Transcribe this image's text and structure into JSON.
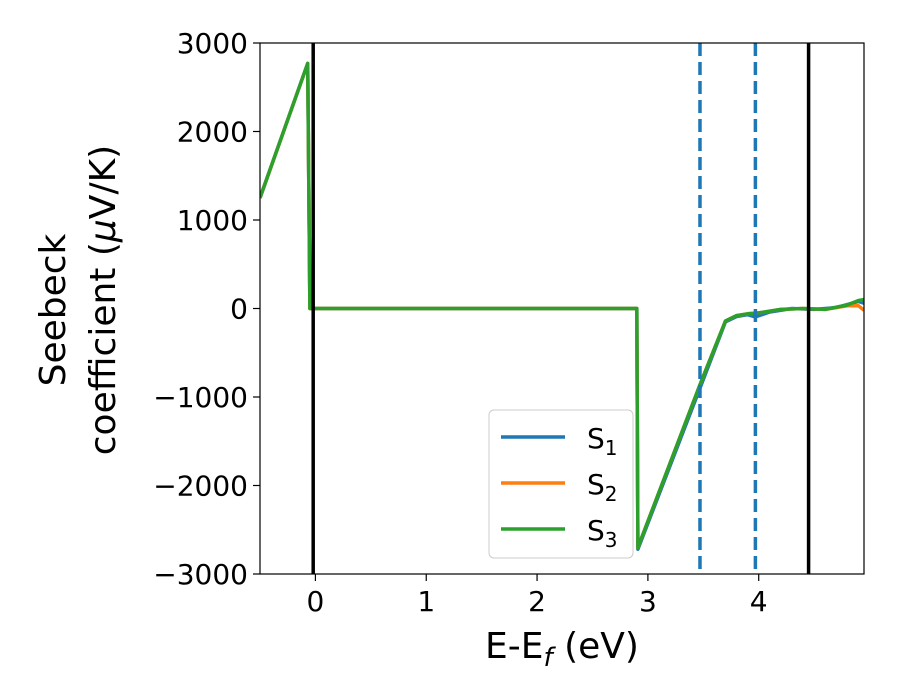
{
  "chart_data": {
    "type": "line",
    "xlabel": {
      "main": "E-E",
      "sub": "f",
      "suffix": " (eV)"
    },
    "ylabel": {
      "line1": "Seebeck",
      "line2_prefix": "coefficient  (",
      "mu": "μ",
      "line2_suffix": "V/K)"
    },
    "xlim": [
      -0.5,
      4.95
    ],
    "ylim": [
      -3000,
      3000
    ],
    "xticks": [
      0,
      1,
      2,
      3,
      4
    ],
    "xtick_labels": [
      "0",
      "1",
      "2",
      "3",
      "4"
    ],
    "yticks": [
      3000,
      2000,
      1000,
      0,
      -1000,
      -2000,
      -3000
    ],
    "ytick_labels": [
      "3000",
      "2000",
      "1000",
      "0",
      "−1000",
      "−2000",
      "−3000"
    ],
    "vlines": [
      {
        "x": -0.02,
        "style": "solid",
        "color": "#000000"
      },
      {
        "x": 4.45,
        "style": "solid",
        "color": "#000000"
      },
      {
        "x": 3.47,
        "style": "dashed",
        "color": "#1f77b4"
      },
      {
        "x": 3.97,
        "style": "dashed",
        "color": "#1f77b4"
      }
    ],
    "legend_position": "lower-center",
    "series": [
      {
        "name": "S",
        "sub": "1",
        "color": "#1f77b4",
        "points": [
          [
            -0.5,
            1250
          ],
          [
            -0.07,
            2770
          ],
          [
            -0.05,
            0
          ],
          [
            2.9,
            0
          ],
          [
            2.91,
            -2720
          ],
          [
            3.47,
            -900
          ],
          [
            3.7,
            -150
          ],
          [
            3.8,
            -90
          ],
          [
            3.9,
            -70
          ],
          [
            3.97,
            -95
          ],
          [
            4.1,
            -40
          ],
          [
            4.3,
            0
          ],
          [
            4.5,
            -10
          ],
          [
            4.7,
            10
          ],
          [
            4.9,
            80
          ],
          [
            4.95,
            60
          ]
        ]
      },
      {
        "name": "S",
        "sub": "2",
        "color": "#ff7f0e",
        "points": [
          [
            -0.5,
            1250
          ],
          [
            -0.07,
            2770
          ],
          [
            -0.05,
            0
          ],
          [
            2.9,
            0
          ],
          [
            2.91,
            -2700
          ],
          [
            3.47,
            -860
          ],
          [
            3.7,
            -140
          ],
          [
            3.8,
            -80
          ],
          [
            3.9,
            -60
          ],
          [
            4.0,
            -50
          ],
          [
            4.2,
            -10
          ],
          [
            4.4,
            0
          ],
          [
            4.6,
            -10
          ],
          [
            4.8,
            30
          ],
          [
            4.9,
            30
          ],
          [
            4.95,
            -20
          ]
        ]
      },
      {
        "name": "S",
        "sub": "3",
        "color": "#2ca02c",
        "points": [
          [
            -0.5,
            1250
          ],
          [
            -0.07,
            2770
          ],
          [
            -0.05,
            0
          ],
          [
            2.9,
            0
          ],
          [
            2.91,
            -2700
          ],
          [
            3.47,
            -860
          ],
          [
            3.7,
            -140
          ],
          [
            3.8,
            -80
          ],
          [
            3.9,
            -60
          ],
          [
            4.0,
            -50
          ],
          [
            4.2,
            -10
          ],
          [
            4.4,
            0
          ],
          [
            4.6,
            -10
          ],
          [
            4.8,
            40
          ],
          [
            4.9,
            90
          ],
          [
            4.95,
            100
          ]
        ]
      }
    ]
  }
}
